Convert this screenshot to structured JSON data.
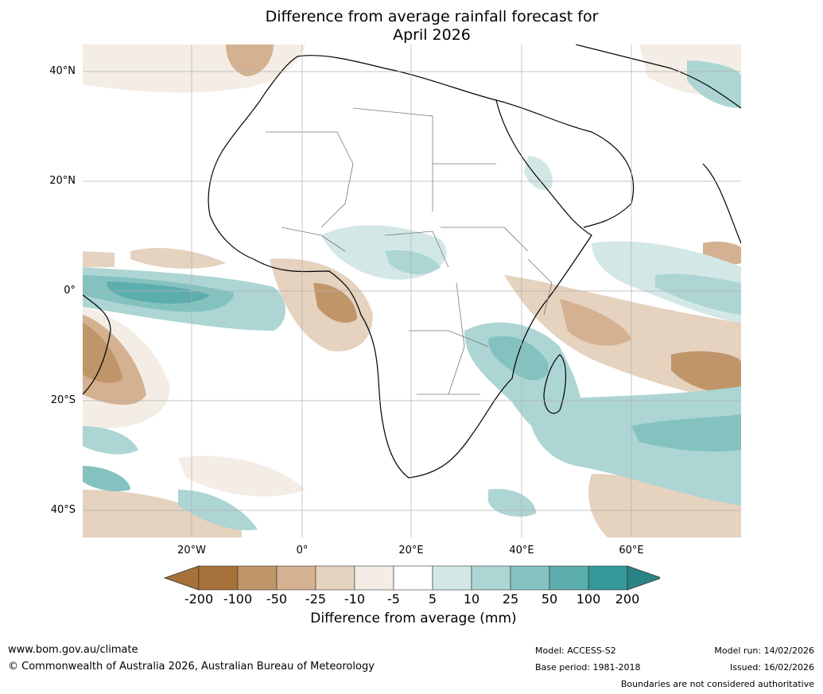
{
  "title": {
    "line1": "Difference from average rainfall forecast for",
    "line2": "April 2026"
  },
  "map": {
    "lat_labels": [
      "40°N",
      "20°N",
      "0°",
      "20°S",
      "40°S"
    ],
    "lon_labels": [
      "20°W",
      "0°",
      "20°E",
      "40°E",
      "60°E"
    ]
  },
  "legend": {
    "ticks": [
      "-200",
      "-100",
      "-50",
      "-25",
      "-10",
      "-5",
      "5",
      "10",
      "25",
      "50",
      "100",
      "200"
    ],
    "colors": [
      "#a6713a",
      "#a6713a",
      "#c1956a",
      "#d4b190",
      "#e5d2bf",
      "#f3ede6",
      "#ffffff",
      "#d3e8e6",
      "#acd5d3",
      "#84c2c0",
      "#5caeac",
      "#33999a",
      "#2a8486"
    ],
    "label": "Difference from average (mm)"
  },
  "footer": {
    "website": "www.bom.gov.au/climate",
    "copyright": "© Commonwealth of Australia 2026, Australian Bureau of Meteorology",
    "model": "Model: ACCESS-S2",
    "base_period": "Base period: 1981-2018",
    "model_run": "Model run: 14/02/2026",
    "issued": "Issued: 16/02/2026",
    "disclaimer": "Boundaries are not considered authoritative"
  }
}
